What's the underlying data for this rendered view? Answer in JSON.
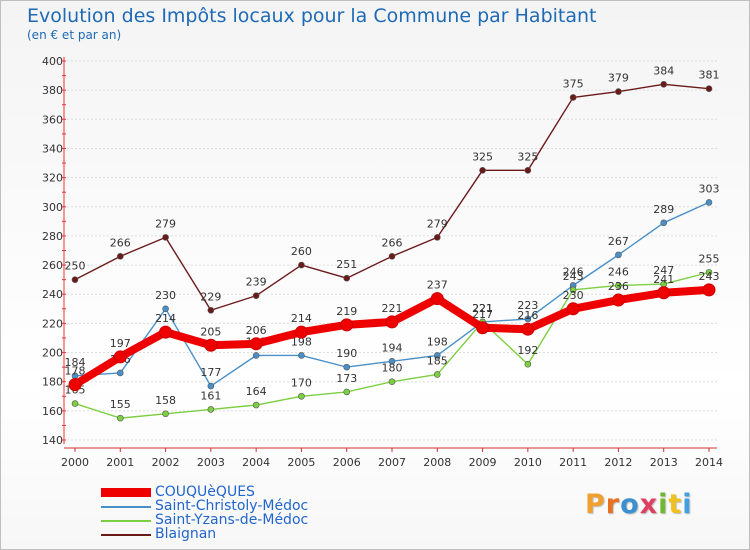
{
  "header": {
    "title": "Evolution des Impôts locaux pour la Commune par Habitant",
    "subtitle": "(en € et par an)"
  },
  "logo": {
    "text": "Proxiti",
    "colors": [
      "#f0a030",
      "#e87020",
      "#3a90d0",
      "#e04060",
      "#70b830",
      "#f0c020",
      "#40a0e0"
    ]
  },
  "chart_data": {
    "type": "line",
    "x": [
      "2000",
      "2001",
      "2002",
      "2003",
      "2004",
      "2005",
      "2006",
      "2007",
      "2008",
      "2009",
      "2010",
      "2011",
      "2012",
      "2013",
      "2014"
    ],
    "ylim": [
      140,
      400
    ],
    "yticks": [
      140,
      160,
      180,
      200,
      220,
      240,
      260,
      280,
      300,
      320,
      340,
      360,
      380,
      400
    ],
    "grid": "horizontal",
    "legend": "bottom-left",
    "series": [
      {
        "name": "Blaignan",
        "color": "#6b1a1a",
        "values": [
          250,
          266,
          279,
          229,
          239,
          260,
          251,
          266,
          279,
          325,
          325,
          375,
          379,
          384,
          381
        ],
        "labels": [
          "250",
          "266",
          "279",
          "229",
          "239",
          "260",
          "251",
          "266",
          "279",
          "325",
          "325",
          "375",
          "379",
          "384",
          "381"
        ]
      },
      {
        "name": "Saint-Christoly-Médoc",
        "color": "#4a90c8",
        "values": [
          184,
          186,
          230,
          177,
          198,
          198,
          190,
          194,
          198,
          221,
          223,
          246,
          267,
          289,
          303
        ],
        "labels": [
          "184",
          "186",
          "230",
          "177",
          "198",
          "198",
          "190",
          "194",
          "198",
          "221",
          "223",
          "246",
          "267",
          "289",
          "303"
        ]
      },
      {
        "name": "Saint-Yzans-de-Médoc",
        "color": "#7ccf40",
        "values": [
          165,
          155,
          158,
          161,
          164,
          170,
          173,
          180,
          185,
          221,
          192,
          243,
          246,
          247,
          255
        ],
        "labels": [
          "165",
          "155",
          "158",
          "161",
          "164",
          "170",
          "173",
          "180",
          "185",
          "221",
          "192",
          "243",
          "246",
          "247",
          "255"
        ]
      },
      {
        "name": "COUQUèQUES",
        "color": "#ee0000",
        "values": [
          178,
          197,
          214,
          205,
          206,
          214,
          219,
          221,
          237,
          217,
          216,
          230,
          236,
          241,
          243
        ],
        "labels": [
          "178",
          "197",
          "214",
          "205",
          "206",
          "214",
          "219",
          "221",
          "237",
          "217",
          "216",
          "230",
          "236",
          "241",
          "243"
        ]
      }
    ]
  }
}
